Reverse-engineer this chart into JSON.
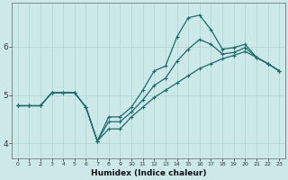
{
  "xlabel": "Humidex (Indice chaleur)",
  "bg_color": "#cce8e8",
  "line_color": "#1e6b6b",
  "grid_major_color": "#add4d4",
  "grid_minor_color": "#c0e0e0",
  "xlim": [
    -0.5,
    23.5
  ],
  "ylim": [
    3.7,
    6.9
  ],
  "xticks": [
    0,
    1,
    2,
    3,
    4,
    5,
    6,
    7,
    8,
    9,
    10,
    11,
    12,
    13,
    14,
    15,
    16,
    17,
    18,
    19,
    20,
    21,
    22,
    23
  ],
  "yticks": [
    4,
    5,
    6
  ],
  "series1_x": [
    0,
    1,
    2,
    3,
    4,
    5,
    6,
    7,
    8,
    9,
    10,
    11,
    12,
    13,
    14,
    15,
    16,
    17,
    18,
    19,
    20,
    21,
    22,
    23
  ],
  "series1_y": [
    4.78,
    4.78,
    4.78,
    5.05,
    5.05,
    5.05,
    4.75,
    4.05,
    4.3,
    4.3,
    4.55,
    4.75,
    4.95,
    5.1,
    5.25,
    5.4,
    5.55,
    5.65,
    5.75,
    5.82,
    5.9,
    5.78,
    5.65,
    5.5
  ],
  "series2_x": [
    0,
    1,
    2,
    3,
    4,
    5,
    6,
    7,
    8,
    9,
    10,
    11,
    12,
    13,
    14,
    15,
    16,
    17,
    18,
    19,
    20,
    21,
    22,
    23
  ],
  "series2_y": [
    4.78,
    4.78,
    4.78,
    5.05,
    5.05,
    5.05,
    4.75,
    4.05,
    4.55,
    4.55,
    4.75,
    5.1,
    5.5,
    5.6,
    6.2,
    6.6,
    6.65,
    6.35,
    5.95,
    5.98,
    6.05,
    5.78,
    5.65,
    5.5
  ],
  "series3_x": [
    0,
    1,
    2,
    3,
    4,
    5,
    6,
    7,
    8,
    9,
    10,
    11,
    12,
    13,
    14,
    15,
    16,
    17,
    18,
    19,
    20,
    21,
    22,
    23
  ],
  "series3_y": [
    4.78,
    4.78,
    4.78,
    5.05,
    5.05,
    5.05,
    4.75,
    4.05,
    4.45,
    4.45,
    4.65,
    4.9,
    5.2,
    5.35,
    5.7,
    5.95,
    6.15,
    6.05,
    5.85,
    5.88,
    5.98,
    5.78,
    5.65,
    5.5
  ]
}
